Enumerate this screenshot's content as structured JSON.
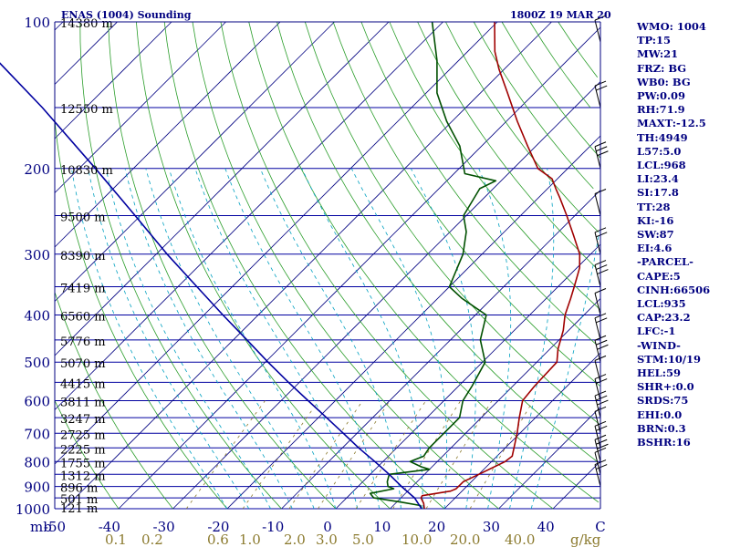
{
  "chart_data": {
    "type": "skew-t",
    "title": "ENAS (1004) Sounding",
    "valid_time": "1800Z 19 MAR 20",
    "y_axis_label": "mb",
    "pressure_levels": [
      100,
      200,
      300,
      400,
      500,
      600,
      700,
      800,
      900,
      1000
    ],
    "temperature_ticks": [
      "-50",
      "-40",
      "-30",
      "-20",
      "-10",
      "0",
      "10",
      "20",
      "30",
      "40",
      "C"
    ],
    "mixing_ratio_labels": [
      "0.1",
      "0.2",
      "0.6",
      "1.0",
      "2.0",
      "3.0",
      "5.0",
      "10.0",
      "20.0",
      "40.0",
      "g/kg"
    ],
    "height_labels": [
      {
        "p": 100,
        "label": "14380 m"
      },
      {
        "p": 150,
        "label": "12550 m"
      },
      {
        "p": 200,
        "label": "10830 m"
      },
      {
        "p": 250,
        "label": "9500 m"
      },
      {
        "p": 300,
        "label": "8390 m"
      },
      {
        "p": 350,
        "label": "7419 m"
      },
      {
        "p": 400,
        "label": "6560 m"
      },
      {
        "p": 450,
        "label": "5776 m"
      },
      {
        "p": 500,
        "label": "5070 m"
      },
      {
        "p": 550,
        "label": "4415 m"
      },
      {
        "p": 600,
        "label": "3811 m"
      },
      {
        "p": 650,
        "label": "3247 m"
      },
      {
        "p": 700,
        "label": "2725 m"
      },
      {
        "p": 750,
        "label": "2225 m"
      },
      {
        "p": 800,
        "label": "1755 m"
      },
      {
        "p": 850,
        "label": "1312 m"
      },
      {
        "p": 900,
        "label": "896 m"
      },
      {
        "p": 950,
        "label": "501 m"
      },
      {
        "p": 1000,
        "label": "121 m"
      }
    ],
    "series": [
      {
        "name": "Temperature",
        "color": "#a00000",
        "points": [
          [
            1005,
            16.5
          ],
          [
            975,
            15.2
          ],
          [
            950,
            13.7
          ],
          [
            940,
            13.5
          ],
          [
            920,
            17.9
          ],
          [
            910,
            18.5
          ],
          [
            880,
            18.5
          ],
          [
            850,
            20.0
          ],
          [
            800,
            22.5
          ],
          [
            780,
            22.8
          ],
          [
            700,
            19.5
          ],
          [
            650,
            17.0
          ],
          [
            600,
            14.5
          ],
          [
            560,
            14.0
          ],
          [
            500,
            13.7
          ],
          [
            470,
            11.5
          ],
          [
            430,
            9.0
          ],
          [
            400,
            6.5
          ],
          [
            370,
            4.5
          ],
          [
            350,
            3.0
          ],
          [
            320,
            0.5
          ],
          [
            300,
            -2.0
          ],
          [
            275,
            -6.5
          ],
          [
            250,
            -11.5
          ],
          [
            230,
            -16.0
          ],
          [
            220,
            -18.5
          ],
          [
            210,
            -21.0
          ],
          [
            200,
            -25.5
          ],
          [
            180,
            -31.5
          ],
          [
            160,
            -38.0
          ],
          [
            140,
            -45.0
          ],
          [
            125,
            -51.0
          ],
          [
            115,
            -55.0
          ],
          [
            100,
            -60.5
          ]
        ]
      },
      {
        "name": "Dewpoint",
        "color": "#005000",
        "points": [
          [
            1005,
            16.0
          ],
          [
            985,
            15.0
          ],
          [
            970,
            11.0
          ],
          [
            950,
            5.0
          ],
          [
            930,
            3.5
          ],
          [
            910,
            7.0
          ],
          [
            900,
            5.5
          ],
          [
            880,
            4.5
          ],
          [
            850,
            3.5
          ],
          [
            830,
            10.0
          ],
          [
            820,
            8.0
          ],
          [
            800,
            5.0
          ],
          [
            780,
            6.5
          ],
          [
            750,
            6.0
          ],
          [
            700,
            6.0
          ],
          [
            650,
            6.0
          ],
          [
            600,
            3.5
          ],
          [
            560,
            2.5
          ],
          [
            500,
            0.5
          ],
          [
            450,
            -4.5
          ],
          [
            400,
            -8.0
          ],
          [
            370,
            -15.5
          ],
          [
            350,
            -20.0
          ],
          [
            300,
            -23.5
          ],
          [
            270,
            -27.0
          ],
          [
            250,
            -30.5
          ],
          [
            220,
            -32.5
          ],
          [
            212,
            -31.0
          ],
          [
            205,
            -38.0
          ],
          [
            180,
            -44.0
          ],
          [
            160,
            -51.0
          ],
          [
            140,
            -58.0
          ],
          [
            120,
            -64.0
          ],
          [
            100,
            -72.0
          ]
        ]
      },
      {
        "name": "Parcel",
        "color": "#0000a0",
        "points": [
          [
            1005,
            16.0
          ],
          [
            950,
            12.5
          ],
          [
            900,
            8.0
          ],
          [
            850,
            3.5
          ],
          [
            800,
            -1.5
          ],
          [
            750,
            -7.0
          ],
          [
            700,
            -12.5
          ],
          [
            650,
            -18.5
          ],
          [
            600,
            -25.0
          ],
          [
            550,
            -32.0
          ],
          [
            500,
            -39.5
          ],
          [
            450,
            -47.5
          ],
          [
            400,
            -56.5
          ],
          [
            350,
            -66.5
          ],
          [
            300,
            -78.0
          ],
          [
            250,
            -91.0
          ],
          [
            200,
            -107.0
          ],
          [
            150,
            -128.0
          ],
          [
            120,
            -145.0
          ],
          [
            100,
            -158.0
          ]
        ]
      }
    ],
    "wind_barbs_side": "right"
  },
  "panel": {
    "lines": [
      "WMO: 1004",
      "TP:15",
      "MW:21",
      "FRZ: BG",
      "WB0: BG",
      "PW:0.09",
      "RH:71.9",
      "MAXT:-12.5",
      "TH:4949",
      "L57:5.0",
      "LCL:968",
      "LI:23.4",
      "SI:17.8",
      "TT:28",
      "KI:-16",
      "SW:87",
      "EI:4.6",
      "-PARCEL-",
      "CAPE:5",
      "CINH:66506",
      "LCL:935",
      "CAP:23.2",
      "LFC:-1",
      "-WIND-",
      "STM:10/19",
      "HEL:59",
      "SHR+:0.0",
      "SRDS:75",
      "EHI:0.0",
      "BRN:0.3",
      "BSHR:16"
    ]
  },
  "colors": {
    "isobar": "#0000a0",
    "isotherm": "#000080",
    "dry_adiabat": "#2a9d2a",
    "moist_adiabat": "#00a0c0",
    "mixing_ratio": "#8b7a2e",
    "temperature": "#a00000",
    "dewpoint": "#005000",
    "parcel": "#0000a0"
  }
}
